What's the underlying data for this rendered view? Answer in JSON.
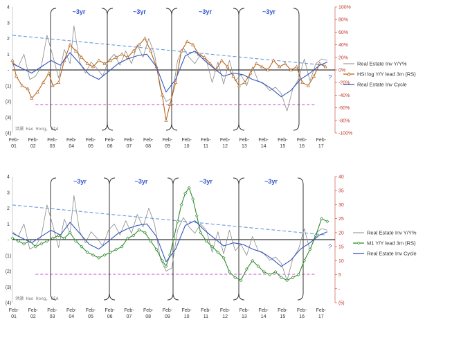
{
  "colors": {
    "real_estate_yoy": "#8a8a8a",
    "real_estate_cycle": "#3355bb",
    "trend": "#6699dd",
    "pink_line": "#cc44cc",
    "hsi": "#b5651d",
    "m1": "#2e8b2e",
    "right_axis_text": "#c0392b",
    "bracket": "#333333"
  },
  "watermark": "洪灏 Hao Hong, CFA",
  "chart_data": [
    {
      "type": "line",
      "name": "top",
      "x_ticks": [
        "Feb-\n01",
        "Feb-\n02",
        "Feb-\n03",
        "Feb-\n04",
        "Feb-\n05",
        "Feb-\n06",
        "Feb-\n07",
        "Feb-\n08",
        "Feb-\n09",
        "Feb-\n10",
        "Feb-\n11",
        "Feb-\n12",
        "Feb-\n13",
        "Feb-\n14",
        "Feb-\n15",
        "Feb-\n16",
        "Feb-\n17"
      ],
      "x_tick_lines": [
        [
          "Feb-",
          "01"
        ],
        [
          "Feb-",
          "02"
        ],
        [
          "Feb-",
          "03"
        ],
        [
          "Feb-",
          "04"
        ],
        [
          "Feb-",
          "05"
        ],
        [
          "Feb-",
          "06"
        ],
        [
          "Feb-",
          "07"
        ],
        [
          "Feb-",
          "08"
        ],
        [
          "Feb-",
          "09"
        ],
        [
          "Feb-",
          "10"
        ],
        [
          "Feb-",
          "11"
        ],
        [
          "Feb-",
          "12"
        ],
        [
          "Feb-",
          "13"
        ],
        [
          "Feb-",
          "14"
        ],
        [
          "Feb-",
          "15"
        ],
        [
          "Feb-",
          "16"
        ],
        [
          "Feb-",
          "17"
        ]
      ],
      "y_left_ticks": [
        "4",
        "3",
        "2",
        "1",
        "-",
        "(1)",
        "(2)",
        "(3)",
        "(4)"
      ],
      "y_left_range": [
        -4,
        4
      ],
      "y_right_ticks": [
        "100%",
        "80%",
        "60%",
        "40%",
        "20%",
        "0%",
        "-20%",
        "-40%",
        "-60%",
        "-80%",
        "-100%"
      ],
      "y_right_range": [
        -100,
        100
      ],
      "cycle_labels": [
        "~3yr",
        "~3yr",
        "~3yr",
        "~3yr"
      ],
      "question_mark": "?",
      "legend": [
        "Real Estate Inv Y/Y%",
        "HSI log Y/Y lead 3m (RS)",
        "Real Estate Inv Cycle"
      ],
      "pink_level": -2.2,
      "trend_start": [
        2001.1,
        2.2
      ],
      "trend_end": [
        2017.4,
        0.3
      ],
      "series": [
        {
          "name": "Real Estate Inv Y/Y%",
          "axis": "left",
          "x": [
            2001.1,
            2001.4,
            2001.7,
            2002.0,
            2002.3,
            2002.6,
            2002.9,
            2003.2,
            2003.5,
            2003.8,
            2004.1,
            2004.3,
            2004.6,
            2004.9,
            2005.2,
            2005.5,
            2005.8,
            2006.1,
            2006.4,
            2006.7,
            2007.0,
            2007.3,
            2007.6,
            2007.9,
            2008.2,
            2008.5,
            2008.8,
            2009.1,
            2009.4,
            2009.7,
            2010.0,
            2010.3,
            2010.6,
            2010.9,
            2011.2,
            2011.5,
            2011.8,
            2012.1,
            2012.4,
            2012.7,
            2013.0,
            2013.3,
            2013.6,
            2013.9,
            2014.2,
            2014.5,
            2014.8,
            2015.1,
            2015.4,
            2015.7,
            2016.0,
            2016.3,
            2016.6,
            2016.9,
            2017.2,
            2017.5
          ],
          "values": [
            0.5,
            0.2,
            1.0,
            -0.6,
            -0.4,
            0.2,
            2.2,
            0.9,
            -0.5,
            1.3,
            0.4,
            2.8,
            0.5,
            -0.2,
            0.5,
            0.1,
            -0.4,
            0.6,
            1.0,
            0.3,
            1.2,
            0.4,
            1.6,
            0.8,
            2.0,
            1.0,
            -1.2,
            -2.0,
            -1.8,
            0.6,
            1.4,
            0.8,
            0.4,
            1.0,
            0.6,
            -0.8,
            0.5,
            -0.9,
            0.6,
            -0.7,
            -0.3,
            -1.0,
            0.2,
            -0.7,
            -0.9,
            -1.3,
            -1.1,
            -1.5,
            -2.6,
            -1.2,
            -0.6,
            0.7,
            -0.7,
            0.4,
            0.7,
            0.6
          ]
        },
        {
          "name": "HSI log Y/Y lead 3m (RS)",
          "axis": "right",
          "x": [
            2001.1,
            2001.3,
            2001.6,
            2001.9,
            2002.1,
            2002.4,
            2002.7,
            2003.0,
            2003.2,
            2003.5,
            2003.8,
            2004.1,
            2004.4,
            2004.7,
            2005.0,
            2005.3,
            2005.6,
            2005.9,
            2006.2,
            2006.5,
            2006.8,
            2007.1,
            2007.4,
            2007.7,
            2008.0,
            2008.3,
            2008.6,
            2008.9,
            2009.1,
            2009.3,
            2009.6,
            2009.9,
            2010.2,
            2010.5,
            2010.8,
            2011.1,
            2011.4,
            2011.7,
            2012.0,
            2012.3,
            2012.6,
            2012.9,
            2013.2,
            2013.5,
            2013.8,
            2014.1,
            2014.4,
            2014.7,
            2015.0,
            2015.3,
            2015.6,
            2015.9,
            2016.2,
            2016.5,
            2016.8,
            2017.1,
            2017.4
          ],
          "values": [
            15,
            -10,
            -25,
            -30,
            -45,
            -35,
            -20,
            -5,
            -25,
            -20,
            15,
            40,
            30,
            20,
            10,
            5,
            15,
            10,
            15,
            20,
            25,
            20,
            30,
            40,
            50,
            30,
            5,
            -40,
            -80,
            -55,
            -20,
            30,
            45,
            40,
            25,
            20,
            10,
            0,
            15,
            5,
            -10,
            -25,
            -20,
            -5,
            10,
            5,
            0,
            15,
            5,
            10,
            0,
            5,
            -20,
            -25,
            -10,
            10,
            5
          ]
        },
        {
          "name": "Real Estate Inv Cycle",
          "axis": "left",
          "x": [
            2001.1,
            2001.6,
            2002.1,
            2002.6,
            2003.1,
            2003.6,
            2004.1,
            2004.6,
            2005.1,
            2005.6,
            2006.1,
            2006.6,
            2007.1,
            2007.6,
            2008.1,
            2008.6,
            2009.1,
            2009.6,
            2010.1,
            2010.6,
            2011.1,
            2011.6,
            2012.1,
            2012.6,
            2013.1,
            2013.6,
            2014.1,
            2014.6,
            2015.1,
            2015.6,
            2016.1,
            2016.6,
            2017.1,
            2017.5
          ],
          "values": [
            0.4,
            0.1,
            -0.2,
            0.2,
            0.6,
            0.3,
            1.1,
            0.4,
            -0.3,
            -0.6,
            -0.1,
            0.4,
            0.7,
            0.9,
            1.0,
            0.2,
            -1.4,
            -0.6,
            0.9,
            1.2,
            0.6,
            0.1,
            -0.4,
            -0.2,
            -0.3,
            -0.6,
            -0.8,
            -1.2,
            -1.7,
            -1.3,
            -0.6,
            -0.2,
            0.3,
            0.5
          ]
        }
      ]
    },
    {
      "type": "line",
      "name": "bottom",
      "x_ticks": [
        "Feb-01",
        "Feb-02",
        "Feb-03",
        "Feb-04",
        "Feb-05",
        "Feb-06",
        "Feb-07",
        "Feb-08",
        "Feb-09",
        "Feb-10",
        "Feb-11",
        "Feb-12",
        "Feb-13",
        "Feb-14",
        "Feb-15",
        "Feb-16",
        "Feb-17"
      ],
      "x_tick_lines": [
        [
          "Feb-",
          "01"
        ],
        [
          "Feb-",
          "02"
        ],
        [
          "Feb-",
          "03"
        ],
        [
          "Feb-",
          "04"
        ],
        [
          "Feb-",
          "05"
        ],
        [
          "Feb-",
          "06"
        ],
        [
          "Feb-",
          "07"
        ],
        [
          "Feb-",
          "08"
        ],
        [
          "Feb-",
          "09"
        ],
        [
          "Feb-",
          "10"
        ],
        [
          "Feb-",
          "11"
        ],
        [
          "Feb-",
          "12"
        ],
        [
          "Feb-",
          "13"
        ],
        [
          "Feb-",
          "14"
        ],
        [
          "Feb-",
          "15"
        ],
        [
          "Feb-",
          "16"
        ],
        [
          "Feb-",
          "17"
        ]
      ],
      "y_left_ticks": [
        "4",
        "3",
        "2",
        "1",
        "-",
        "(1)",
        "(2)",
        "(3)",
        "(4)"
      ],
      "y_left_range": [
        -4,
        4
      ],
      "y_right_ticks": [
        "40",
        "35",
        "30",
        "25",
        "20",
        "15",
        "10",
        "5",
        "-",
        "(5)"
      ],
      "y_right_range": [
        -5,
        40
      ],
      "cycle_labels": [
        "~3yr",
        "~3yr",
        "~3yr",
        "~3yr"
      ],
      "question_mark": "?",
      "legend": [
        "Real Estate Inv Y/Y%",
        "M1 Y/Y lead 3m (RS)",
        "Real Estate Inv Cycle"
      ],
      "pink_level": -2.2,
      "trend_start": [
        2001.1,
        2.2
      ],
      "trend_end": [
        2017.4,
        0.3
      ],
      "series": [
        {
          "name": "Real Estate Inv Y/Y%",
          "axis": "left",
          "x": [
            2001.1,
            2001.4,
            2001.7,
            2002.0,
            2002.3,
            2002.6,
            2002.9,
            2003.2,
            2003.5,
            2003.8,
            2004.1,
            2004.3,
            2004.6,
            2004.9,
            2005.2,
            2005.5,
            2005.8,
            2006.1,
            2006.4,
            2006.7,
            2007.0,
            2007.3,
            2007.6,
            2007.9,
            2008.2,
            2008.5,
            2008.8,
            2009.1,
            2009.4,
            2009.7,
            2010.0,
            2010.3,
            2010.6,
            2010.9,
            2011.2,
            2011.5,
            2011.8,
            2012.1,
            2012.4,
            2012.7,
            2013.0,
            2013.3,
            2013.6,
            2013.9,
            2014.2,
            2014.5,
            2014.8,
            2015.1,
            2015.4,
            2015.7,
            2016.0,
            2016.3,
            2016.6,
            2016.9,
            2017.2,
            2017.5
          ],
          "values": [
            0.5,
            0.2,
            1.0,
            -0.6,
            -0.4,
            0.2,
            2.2,
            0.9,
            -0.5,
            1.3,
            0.4,
            2.8,
            0.5,
            -0.2,
            0.5,
            0.1,
            -0.4,
            0.6,
            1.0,
            0.3,
            1.2,
            0.4,
            1.6,
            0.8,
            2.0,
            1.0,
            -1.2,
            -2.0,
            -1.8,
            0.6,
            1.4,
            0.8,
            0.4,
            1.0,
            0.6,
            -0.8,
            0.5,
            -0.9,
            0.6,
            -0.7,
            -0.3,
            -1.0,
            0.2,
            -0.7,
            -0.9,
            -1.3,
            -1.1,
            -1.5,
            -2.6,
            -1.2,
            -0.6,
            0.7,
            -0.7,
            0.4,
            0.7,
            0.6
          ]
        },
        {
          "name": "M1 Y/Y lead 3m (RS)",
          "axis": "right",
          "x": [
            2001.1,
            2001.4,
            2001.7,
            2002.0,
            2002.3,
            2002.6,
            2002.9,
            2003.2,
            2003.5,
            2003.8,
            2004.1,
            2004.4,
            2004.7,
            2005.0,
            2005.3,
            2005.6,
            2005.9,
            2006.2,
            2006.5,
            2006.8,
            2007.1,
            2007.4,
            2007.7,
            2008.0,
            2008.3,
            2008.6,
            2008.9,
            2009.1,
            2009.3,
            2009.5,
            2009.7,
            2009.9,
            2010.1,
            2010.3,
            2010.5,
            2010.7,
            2010.9,
            2011.2,
            2011.5,
            2011.8,
            2012.1,
            2012.4,
            2012.7,
            2013.0,
            2013.3,
            2013.6,
            2013.9,
            2014.2,
            2014.5,
            2014.8,
            2015.1,
            2015.4,
            2015.7,
            2016.0,
            2016.3,
            2016.6,
            2016.9,
            2017.2,
            2017.5
          ],
          "values": [
            18,
            17,
            16,
            17,
            15,
            16,
            17,
            18,
            19,
            18,
            20,
            17,
            15,
            13,
            12,
            11,
            12,
            13,
            14,
            15,
            18,
            19,
            21,
            20,
            17,
            14,
            10,
            8,
            12,
            18,
            24,
            30,
            34,
            36,
            32,
            26,
            20,
            17,
            15,
            13,
            11,
            6,
            4,
            3,
            7,
            10,
            8,
            6,
            5,
            6,
            4,
            3,
            4,
            5,
            10,
            14,
            19,
            25,
            24
          ]
        },
        {
          "name": "Real Estate Inv Cycle",
          "axis": "left",
          "x": [
            2001.1,
            2001.6,
            2002.1,
            2002.6,
            2003.1,
            2003.6,
            2004.1,
            2004.6,
            2005.1,
            2005.6,
            2006.1,
            2006.6,
            2007.1,
            2007.6,
            2008.1,
            2008.6,
            2009.1,
            2009.6,
            2010.1,
            2010.6,
            2011.1,
            2011.6,
            2012.1,
            2012.6,
            2013.1,
            2013.6,
            2014.1,
            2014.6,
            2015.1,
            2015.6,
            2016.1,
            2016.6,
            2017.1,
            2017.5
          ],
          "values": [
            0.4,
            0.1,
            -0.2,
            0.2,
            0.6,
            0.3,
            1.1,
            0.4,
            -0.3,
            -0.6,
            -0.1,
            0.4,
            0.7,
            0.9,
            1.0,
            0.2,
            -1.4,
            -0.6,
            0.9,
            1.2,
            0.6,
            0.1,
            -0.4,
            -0.2,
            -0.3,
            -0.6,
            -0.8,
            -1.2,
            -1.7,
            -1.3,
            -0.6,
            -0.2,
            0.3,
            0.5
          ]
        }
      ]
    }
  ]
}
